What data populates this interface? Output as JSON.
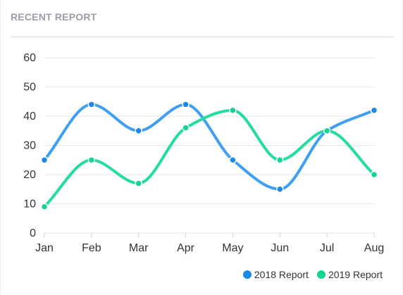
{
  "card": {
    "title": "RECENT REPORT"
  },
  "chart_data": {
    "type": "line",
    "categories": [
      "Jan",
      "Feb",
      "Mar",
      "Apr",
      "May",
      "Jun",
      "Jul",
      "Aug"
    ],
    "ylim": [
      0,
      60
    ],
    "yticks": [
      0,
      10,
      20,
      30,
      40,
      50,
      60
    ],
    "smooth": true,
    "grid": true,
    "legend_position": "bottom-right",
    "series": [
      {
        "name": "2018 Report",
        "color": "#3da0f5",
        "values": [
          25,
          44,
          35,
          44,
          25,
          15,
          35,
          42
        ]
      },
      {
        "name": "2019 Report",
        "color": "#22dda0",
        "values": [
          9,
          25,
          17,
          36,
          42,
          25,
          35,
          20
        ]
      }
    ]
  }
}
